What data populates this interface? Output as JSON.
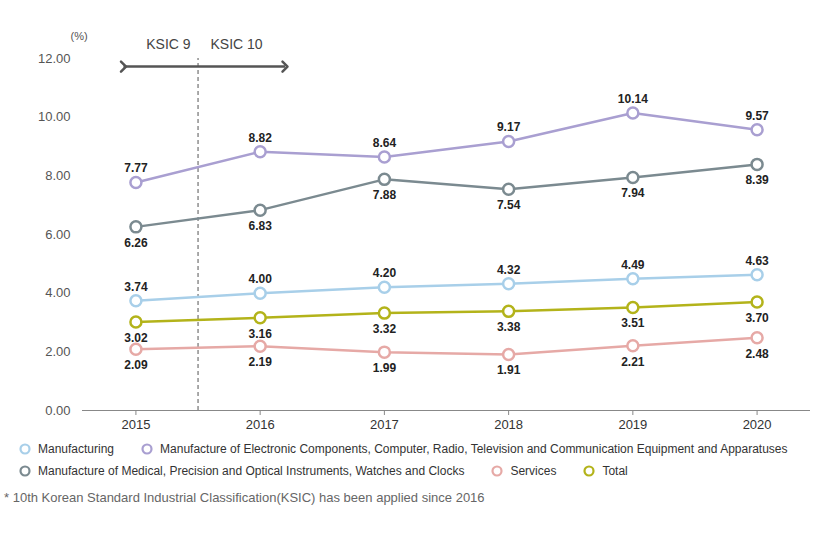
{
  "chart_data": {
    "type": "line",
    "y_label": "(%)",
    "x": [
      2015,
      2016,
      2017,
      2018,
      2019,
      2020
    ],
    "xlim": [
      2014.57,
      2020.43
    ],
    "xticks": [
      2015,
      2016,
      2017,
      2018,
      2019,
      2020
    ],
    "ylim": [
      0,
      12
    ],
    "yticks": [
      {
        "value": 0,
        "label": "0.00"
      },
      {
        "value": 2,
        "label": "2.00"
      },
      {
        "value": 4,
        "label": "4.00"
      },
      {
        "value": 6,
        "label": "6.00"
      },
      {
        "value": 8,
        "label": "8.00"
      },
      {
        "value": 10,
        "label": "10.00"
      },
      {
        "value": 12,
        "label": "12.00"
      }
    ],
    "grid": false,
    "data_labels": true,
    "legend": "bottom",
    "marker": "circle",
    "line_style": "solid",
    "annotations": [
      {
        "text": "KSIC 9"
      },
      {
        "text": "KSIC 10"
      }
    ],
    "caption": "* 10th Korean Standard Industrial Classification(KSIC) has been applied since 2016",
    "series": [
      {
        "name": "Manufacturing",
        "color": "#a8cfe9",
        "values": [
          3.74,
          4.0,
          4.2,
          4.32,
          4.49,
          4.63
        ],
        "value_labels": [
          "3.74",
          "4.00",
          "4.20",
          "4.32",
          "4.49",
          "4.63"
        ]
      },
      {
        "name": "Manufacture of Electronic Components, Computer, Radio, Television and Communication Equipment and Apparatuses",
        "color": "#a99fd1",
        "values": [
          7.77,
          8.82,
          8.64,
          9.17,
          10.14,
          9.57
        ],
        "value_labels": [
          "7.77",
          "8.82",
          "8.64",
          "9.17",
          "10.14",
          "9.57"
        ]
      },
      {
        "name": "Manufacture of Medical, Precision and Optical Instruments, Watches and Clocks",
        "color": "#7b8a90",
        "values": [
          6.26,
          6.83,
          7.88,
          7.54,
          7.94,
          8.39
        ],
        "value_labels": [
          "6.26",
          "6.83",
          "7.88",
          "7.54",
          "7.94",
          "8.39"
        ]
      },
      {
        "name": "Services",
        "color": "#e6a9a6",
        "values": [
          2.09,
          2.19,
          1.99,
          1.91,
          2.21,
          2.48
        ],
        "value_labels": [
          "2.09",
          "2.19",
          "1.99",
          "1.91",
          "2.21",
          "2.48"
        ]
      },
      {
        "name": "Total",
        "color": "#b3b31a",
        "values": [
          3.02,
          3.16,
          3.32,
          3.38,
          3.51,
          3.7
        ],
        "value_labels": [
          "3.02",
          "3.16",
          "3.32",
          "3.38",
          "3.51",
          "3.70"
        ]
      }
    ]
  }
}
